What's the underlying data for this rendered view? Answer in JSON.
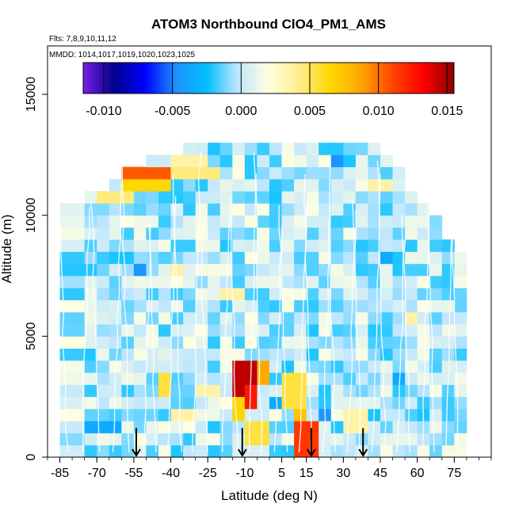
{
  "chart_data": {
    "type": "heatmap",
    "title": "ATOM3 Northbound ClO4_PM1_AMS",
    "flights_label": "Flts: 7,8,9,10,11,12",
    "dates_label": "MMDD: 1014,1017,1019,1020,1023,1025",
    "xlabel": "Latitude (deg N)",
    "ylabel": "Altitude (m)",
    "xlim": [
      -90,
      90
    ],
    "ylim": [
      0,
      17000
    ],
    "x_tick_labels": [
      "-85",
      "-70",
      "-55",
      "-40",
      "-25",
      "-10",
      "5",
      "15",
      "30",
      "45",
      "60",
      "75"
    ],
    "y_tick_labels": [
      "0",
      "5000",
      "10000",
      "15000"
    ],
    "colorbar": {
      "range": [
        -0.0115,
        0.0155
      ],
      "tick_labels": [
        "-0.010",
        "-0.005",
        "0.000",
        "0.005",
        "0.010",
        "0.015"
      ],
      "colors": [
        "#7b1fe6",
        "#00008b",
        "#0000ff",
        "#1e90ff",
        "#00bfff",
        "#bfe6ff",
        "#ffffe0",
        "#ffec8b",
        "#ffd700",
        "#ffa500",
        "#ff4500",
        "#ff0000",
        "#8b0000"
      ]
    },
    "arrow_latitudes": [
      -54,
      -11,
      17,
      38
    ],
    "bin_latitude_edges": [
      -85,
      -75,
      -70,
      -65,
      -60,
      -55,
      -50,
      -45,
      -40,
      -35,
      -30,
      -25,
      -20,
      -15,
      -10,
      -5,
      0,
      5,
      10,
      15,
      20,
      25,
      30,
      35,
      40,
      45,
      50,
      55,
      60,
      65,
      70,
      75,
      80
    ],
    "bin_altitude_step": 500,
    "column_top_altitudes": [
      10500,
      10800,
      11000,
      11500,
      11700,
      12000,
      12200,
      12300,
      12500,
      12800,
      12800,
      12800,
      12800,
      12800,
      12800,
      12800,
      12800,
      12800,
      12800,
      12800,
      12800,
      12800,
      12800,
      12800,
      12800,
      12500,
      12000,
      11000,
      10500,
      10000,
      9000,
      8500
    ],
    "enhancements": [
      {
        "lat": [
          -60,
          -40
        ],
        "alt": [
          11500,
          12000
        ],
        "value": 0.0105
      },
      {
        "lat": [
          -60,
          -40
        ],
        "alt": [
          11000,
          11500
        ],
        "value": 0.0065
      },
      {
        "lat": [
          -70,
          -55
        ],
        "alt": [
          10500,
          11000
        ],
        "value": 0.0045
      },
      {
        "lat": [
          -40,
          -20
        ],
        "alt": [
          11500,
          12000
        ],
        "value": 0.0045
      },
      {
        "lat": [
          -40,
          -25
        ],
        "alt": [
          12000,
          12500
        ],
        "value": 0.0035
      },
      {
        "lat": [
          -15,
          -5
        ],
        "alt": [
          2500,
          4000
        ],
        "value": 0.0145
      },
      {
        "lat": [
          -10,
          -5
        ],
        "alt": [
          2000,
          3000
        ],
        "value": 0.0125
      },
      {
        "lat": [
          -5,
          0
        ],
        "alt": [
          3000,
          4000
        ],
        "value": 0.0085
      },
      {
        "lat": [
          10,
          20
        ],
        "alt": [
          0,
          1500
        ],
        "value": 0.0115
      },
      {
        "lat": [
          10,
          15
        ],
        "alt": [
          1500,
          2500
        ],
        "value": 0.0075
      },
      {
        "lat": [
          -15,
          -10
        ],
        "alt": [
          1500,
          2500
        ],
        "value": 0.0065
      },
      {
        "lat": [
          5,
          15
        ],
        "alt": [
          2000,
          3500
        ],
        "value": 0.0055
      },
      {
        "lat": [
          -10,
          0
        ],
        "alt": [
          500,
          1500
        ],
        "value": 0.0055
      },
      {
        "lat": [
          -45,
          -40
        ],
        "alt": [
          2500,
          3500
        ],
        "value": 0.0055
      },
      {
        "lat": [
          -40,
          -30
        ],
        "alt": [
          1500,
          2000
        ],
        "value": 0.0035
      },
      {
        "lat": [
          -30,
          -20
        ],
        "alt": [
          2500,
          3000
        ],
        "value": 0.0035
      },
      {
        "lat": [
          -40,
          -35
        ],
        "alt": [
          7500,
          8000
        ],
        "value": 0.0035
      },
      {
        "lat": [
          -20,
          -10
        ],
        "alt": [
          6500,
          7000
        ],
        "value": 0.0035
      },
      {
        "lat": [
          40,
          50
        ],
        "alt": [
          11000,
          11500
        ],
        "value": 0.0035
      },
      {
        "lat": [
          30,
          40
        ],
        "alt": [
          1000,
          2000
        ],
        "value": 0.0035
      },
      {
        "lat": [
          55,
          60
        ],
        "alt": [
          5500,
          6000
        ],
        "value": 0.0035
      },
      {
        "lat": [
          -75,
          -60
        ],
        "alt": [
          1000,
          1500
        ],
        "value": -0.0035
      },
      {
        "lat": [
          -55,
          -50
        ],
        "alt": [
          7500,
          8000
        ],
        "value": -0.0045
      },
      {
        "lat": [
          20,
          25
        ],
        "alt": [
          1500,
          2000
        ],
        "value": -0.0045
      },
      {
        "lat": [
          0,
          5
        ],
        "alt": [
          2000,
          2500
        ],
        "value": -0.0035
      },
      {
        "lat": [
          25,
          30
        ],
        "alt": [
          12000,
          12500
        ],
        "value": -0.0045
      },
      {
        "lat": [
          45,
          50
        ],
        "alt": [
          8000,
          8500
        ],
        "value": -0.0035
      },
      {
        "lat": [
          50,
          55
        ],
        "alt": [
          3000,
          3500
        ],
        "value": -0.0035
      }
    ]
  }
}
